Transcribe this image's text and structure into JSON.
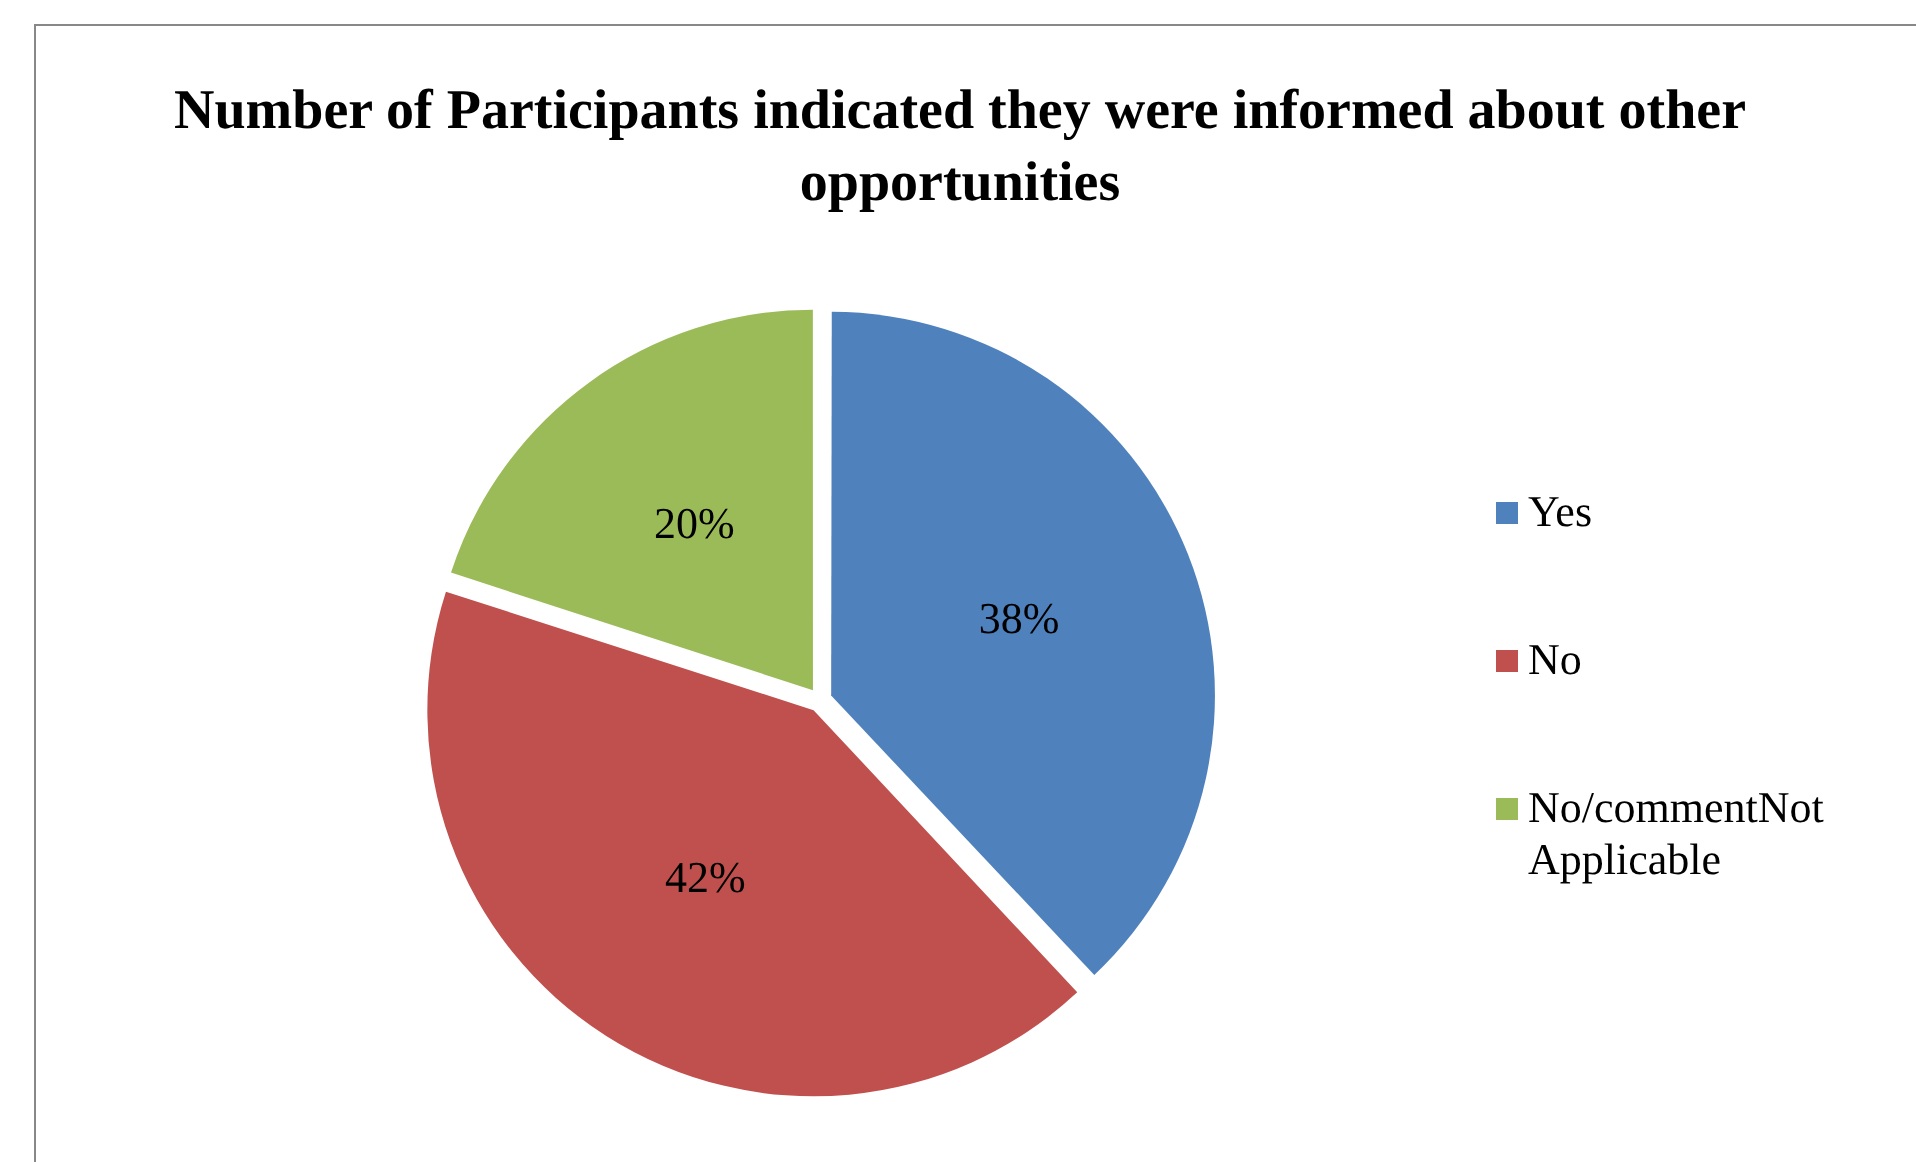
{
  "chart_data": {
    "type": "pie",
    "title": "Number of Participants indicated they were informed about other opportunities",
    "categories": [
      "Yes",
      "No",
      "No/commentNot Applicable"
    ],
    "values": [
      38,
      42,
      20
    ],
    "colors": [
      "#4f81bd",
      "#c0504d",
      "#9bbb59"
    ],
    "value_labels": [
      "38%",
      "42%",
      "20%"
    ],
    "legend": "right"
  }
}
